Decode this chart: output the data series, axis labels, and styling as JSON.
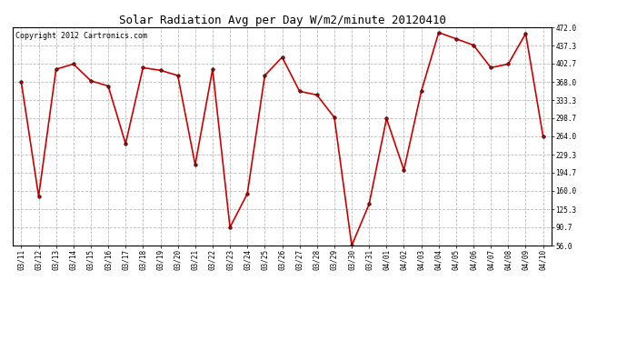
{
  "title": "Solar Radiation Avg per Day W/m2/minute 20120410",
  "copyright": "Copyright 2012 Cartronics.com",
  "dates": [
    "03/11",
    "03/12",
    "03/13",
    "03/14",
    "03/15",
    "03/16",
    "03/17",
    "03/18",
    "03/19",
    "03/20",
    "03/21",
    "03/22",
    "03/23",
    "03/24",
    "03/25",
    "03/26",
    "03/27",
    "03/28",
    "03/29",
    "03/30",
    "03/31",
    "04/01",
    "04/02",
    "04/03",
    "04/04",
    "04/05",
    "04/06",
    "04/07",
    "04/08",
    "04/09",
    "04/10"
  ],
  "values": [
    368.0,
    150.0,
    392.0,
    402.0,
    370.0,
    360.0,
    250.0,
    395.0,
    390.0,
    380.0,
    210.0,
    392.0,
    90.7,
    155.0,
    380.0,
    415.0,
    350.0,
    343.0,
    300.0,
    56.0,
    135.0,
    298.0,
    200.0,
    350.0,
    462.0,
    450.0,
    438.0,
    395.0,
    402.0,
    460.0,
    264.0
  ],
  "line_color": "#cc0000",
  "marker_color": "#cc0000",
  "bg_color": "#ffffff",
  "plot_bg_color": "#ffffff",
  "grid_color": "#bbbbbb",
  "title_fontsize": 9,
  "copyright_fontsize": 6,
  "ytick_labels": [
    "56.0",
    "90.7",
    "125.3",
    "160.0",
    "194.7",
    "229.3",
    "264.0",
    "298.7",
    "333.3",
    "368.0",
    "402.7",
    "437.3",
    "472.0"
  ],
  "ytick_values": [
    56.0,
    90.7,
    125.3,
    160.0,
    194.7,
    229.3,
    264.0,
    298.7,
    333.3,
    368.0,
    402.7,
    437.3,
    472.0
  ],
  "ymin": 56.0,
  "ymax": 472.0
}
